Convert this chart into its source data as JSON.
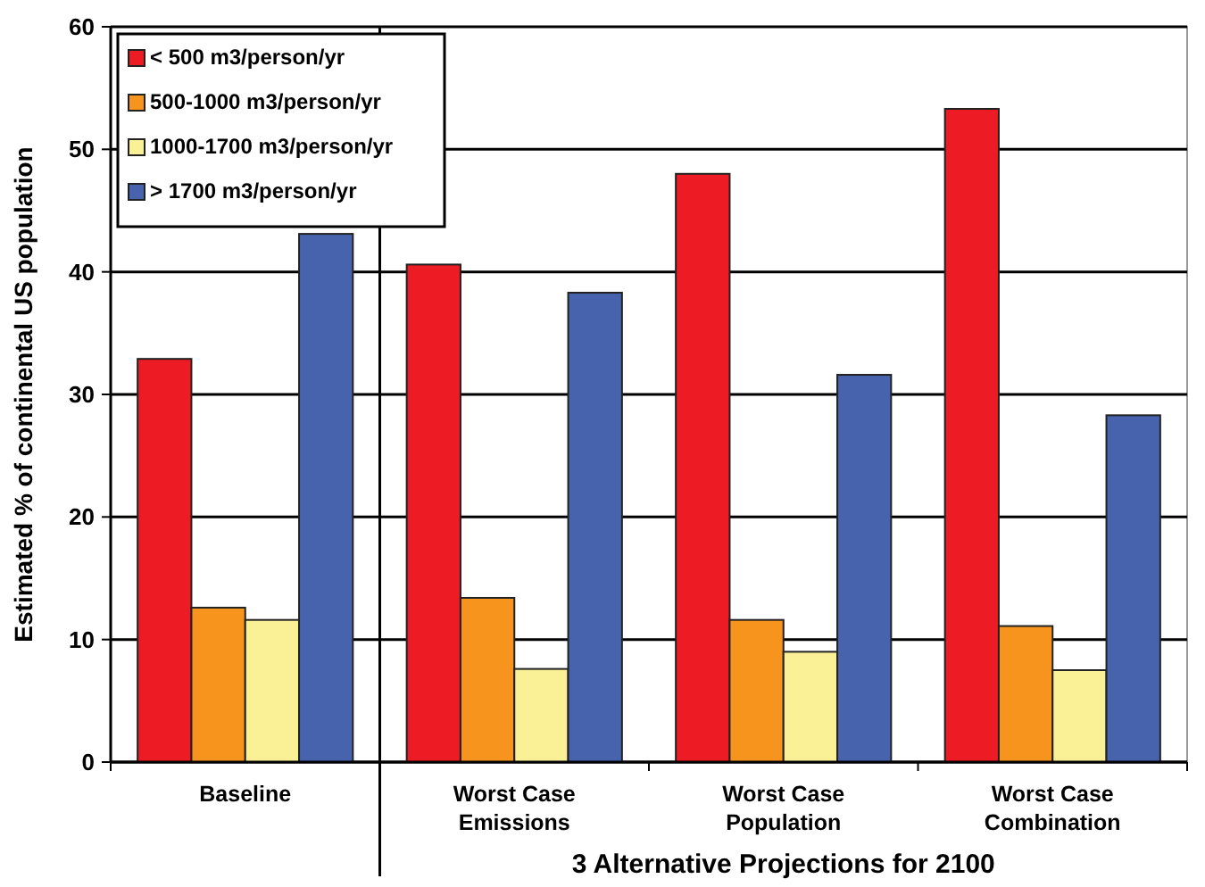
{
  "chart_data": {
    "type": "bar",
    "ylabel": "Estimated % of continental US population",
    "xlabel": "3 Alternative Projections for 2100",
    "categories": [
      "Baseline",
      "Worst Case\nEmissions",
      "Worst Case\nPopulation",
      "Worst Case\nCombination"
    ],
    "series": [
      {
        "name": "< 500 m3/person/yr",
        "color": "#ed1c24",
        "values": [
          32.9,
          40.6,
          48,
          53.3
        ]
      },
      {
        "name": "500-1000 m3/person/yr",
        "color": "#f7941d",
        "values": [
          12.6,
          13.4,
          11.6,
          11.1
        ]
      },
      {
        "name": "1000-1700 m3/person/yr",
        "color": "#faf096",
        "values": [
          11.6,
          7.6,
          9,
          7.5
        ]
      },
      {
        "name": "> 1700 m3/person/yr",
        "color": "#4763ae",
        "values": [
          43.1,
          38.3,
          31.6,
          28.3
        ]
      }
    ],
    "ylim": [
      0,
      60
    ],
    "yticks": [
      0,
      10,
      20,
      30,
      40,
      50,
      60
    ],
    "grid": "y",
    "legend": "top left"
  }
}
